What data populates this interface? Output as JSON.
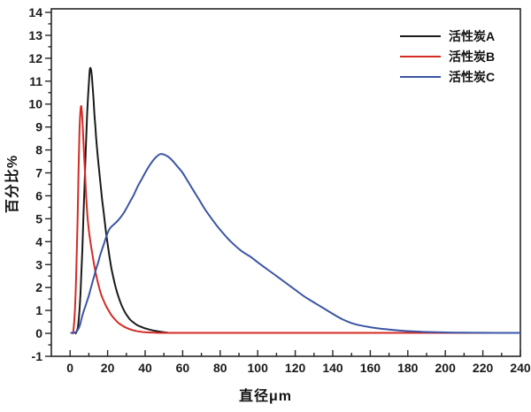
{
  "figure": {
    "background": "#ffffff",
    "axis_color": "#262626",
    "tick_label_color": "#1a1a1a"
  },
  "chart_data": {
    "type": "line",
    "title": "",
    "xlabel": "直径μm",
    "ylabel": "百分比%",
    "xlim": [
      -10,
      240
    ],
    "ylim": [
      -1,
      14
    ],
    "x_major_ticks": [
      0,
      20,
      40,
      60,
      80,
      100,
      120,
      140,
      160,
      180,
      200,
      220,
      240
    ],
    "x_minor_step": 10,
    "y_major_ticks": [
      -1,
      0,
      1,
      2,
      3,
      4,
      5,
      6,
      7,
      8,
      9,
      10,
      11,
      12,
      13,
      14
    ],
    "y_minor_step": 0.5,
    "grid": false,
    "legend_position": "top-right",
    "series": [
      {
        "name": "活性炭A",
        "color": "#1a1a1a",
        "peak": {
          "x": 10.5,
          "y": 11.5
        },
        "points": [
          [
            3,
            0
          ],
          [
            4,
            0.2
          ],
          [
            4.5,
            0.5
          ],
          [
            5,
            1.0
          ],
          [
            5.5,
            1.7
          ],
          [
            6,
            2.6
          ],
          [
            6.5,
            3.6
          ],
          [
            7,
            4.8
          ],
          [
            7.5,
            6.0
          ],
          [
            8,
            7.2
          ],
          [
            8.5,
            8.3
          ],
          [
            9,
            9.4
          ],
          [
            9.5,
            10.2
          ],
          [
            10,
            10.9
          ],
          [
            10.5,
            11.5
          ],
          [
            11,
            11.55
          ],
          [
            11.5,
            11.3
          ],
          [
            12,
            10.8
          ],
          [
            12.5,
            10.2
          ],
          [
            13,
            9.5
          ],
          [
            13.5,
            9.0
          ],
          [
            14,
            8.4
          ],
          [
            15,
            7.5
          ],
          [
            16,
            6.7
          ],
          [
            17,
            5.9
          ],
          [
            18,
            5.2
          ],
          [
            19,
            4.5
          ],
          [
            20,
            3.9
          ],
          [
            21,
            3.35
          ],
          [
            22,
            2.85
          ],
          [
            23,
            2.45
          ],
          [
            24,
            2.1
          ],
          [
            25,
            1.8
          ],
          [
            26,
            1.55
          ],
          [
            27,
            1.32
          ],
          [
            28,
            1.12
          ],
          [
            29,
            0.96
          ],
          [
            30,
            0.82
          ],
          [
            32,
            0.6
          ],
          [
            34,
            0.46
          ],
          [
            36,
            0.35
          ],
          [
            38,
            0.28
          ],
          [
            40,
            0.22
          ],
          [
            43,
            0.15
          ],
          [
            46,
            0.1
          ],
          [
            49,
            0.06
          ],
          [
            52,
            0.03
          ]
        ]
      },
      {
        "name": "活性炭B",
        "color": "#d42b23",
        "peak": {
          "x": 6,
          "y": 9.9
        },
        "points": [
          [
            1.5,
            0
          ],
          [
            2,
            0.3
          ],
          [
            2.5,
            0.9
          ],
          [
            3,
            1.9
          ],
          [
            3.5,
            3.3
          ],
          [
            4,
            5.0
          ],
          [
            4.5,
            7.0
          ],
          [
            5,
            8.8
          ],
          [
            5.5,
            9.7
          ],
          [
            6,
            9.9
          ],
          [
            6.5,
            9.4
          ],
          [
            7,
            8.6
          ],
          [
            7.5,
            7.7
          ],
          [
            8,
            6.9
          ],
          [
            8.5,
            6.1
          ],
          [
            9,
            5.4
          ],
          [
            9.5,
            4.9
          ],
          [
            10,
            4.5
          ],
          [
            11,
            3.9
          ],
          [
            12,
            3.4
          ],
          [
            13,
            2.9
          ],
          [
            14,
            2.5
          ],
          [
            15,
            2.15
          ],
          [
            16,
            1.85
          ],
          [
            17,
            1.6
          ],
          [
            18,
            1.4
          ],
          [
            19,
            1.22
          ],
          [
            20,
            1.07
          ],
          [
            22,
            0.8
          ],
          [
            24,
            0.6
          ],
          [
            26,
            0.44
          ],
          [
            28,
            0.33
          ],
          [
            30,
            0.24
          ],
          [
            33,
            0.15
          ],
          [
            36,
            0.09
          ],
          [
            40,
            0.05
          ],
          [
            45,
            0.03
          ],
          [
            55,
            0.02
          ],
          [
            80,
            0.02
          ],
          [
            120,
            0.02
          ],
          [
            160,
            0.02
          ],
          [
            200,
            0.02
          ],
          [
            240,
            0.02
          ]
        ]
      },
      {
        "name": "活性炭C",
        "color": "#3b55a5",
        "peak": {
          "x": 48,
          "y": 7.8
        },
        "points": [
          [
            0.5,
            0.02
          ],
          [
            2,
            0.03
          ],
          [
            3.5,
            0.08
          ],
          [
            5,
            0.3
          ],
          [
            6,
            0.6
          ],
          [
            7,
            0.9
          ],
          [
            8,
            1.15
          ],
          [
            9,
            1.4
          ],
          [
            10,
            1.65
          ],
          [
            11,
            1.95
          ],
          [
            12,
            2.25
          ],
          [
            13,
            2.55
          ],
          [
            14,
            2.85
          ],
          [
            15,
            3.1
          ],
          [
            16,
            3.4
          ],
          [
            17,
            3.65
          ],
          [
            18,
            3.9
          ],
          [
            19,
            4.15
          ],
          [
            20,
            4.38
          ],
          [
            21,
            4.55
          ],
          [
            22,
            4.65
          ],
          [
            23,
            4.73
          ],
          [
            24,
            4.8
          ],
          [
            25,
            4.88
          ],
          [
            26,
            4.97
          ],
          [
            28,
            5.18
          ],
          [
            30,
            5.45
          ],
          [
            32,
            5.75
          ],
          [
            34,
            6.05
          ],
          [
            36,
            6.4
          ],
          [
            38,
            6.7
          ],
          [
            40,
            7.0
          ],
          [
            42,
            7.28
          ],
          [
            44,
            7.52
          ],
          [
            46,
            7.7
          ],
          [
            48,
            7.82
          ],
          [
            50,
            7.8
          ],
          [
            52,
            7.72
          ],
          [
            54,
            7.58
          ],
          [
            56,
            7.4
          ],
          [
            58,
            7.2
          ],
          [
            60,
            7.0
          ],
          [
            63,
            6.6
          ],
          [
            66,
            6.2
          ],
          [
            69,
            5.8
          ],
          [
            72,
            5.4
          ],
          [
            75,
            5.05
          ],
          [
            78,
            4.72
          ],
          [
            81,
            4.42
          ],
          [
            84,
            4.14
          ],
          [
            87,
            3.9
          ],
          [
            90,
            3.68
          ],
          [
            93,
            3.5
          ],
          [
            96,
            3.35
          ],
          [
            100,
            3.1
          ],
          [
            105,
            2.8
          ],
          [
            110,
            2.5
          ],
          [
            115,
            2.2
          ],
          [
            120,
            1.9
          ],
          [
            125,
            1.6
          ],
          [
            130,
            1.35
          ],
          [
            135,
            1.1
          ],
          [
            140,
            0.85
          ],
          [
            145,
            0.62
          ],
          [
            150,
            0.45
          ],
          [
            155,
            0.34
          ],
          [
            160,
            0.27
          ],
          [
            165,
            0.21
          ],
          [
            170,
            0.17
          ],
          [
            175,
            0.13
          ],
          [
            180,
            0.1
          ],
          [
            185,
            0.08
          ],
          [
            190,
            0.06
          ],
          [
            195,
            0.05
          ],
          [
            200,
            0.04
          ],
          [
            210,
            0.03
          ],
          [
            220,
            0.025
          ],
          [
            230,
            0.02
          ],
          [
            240,
            0.02
          ]
        ]
      }
    ]
  },
  "legend": {
    "items": [
      {
        "label": "活性炭A"
      },
      {
        "label": "活性炭B"
      },
      {
        "label": "活性炭C"
      }
    ]
  }
}
